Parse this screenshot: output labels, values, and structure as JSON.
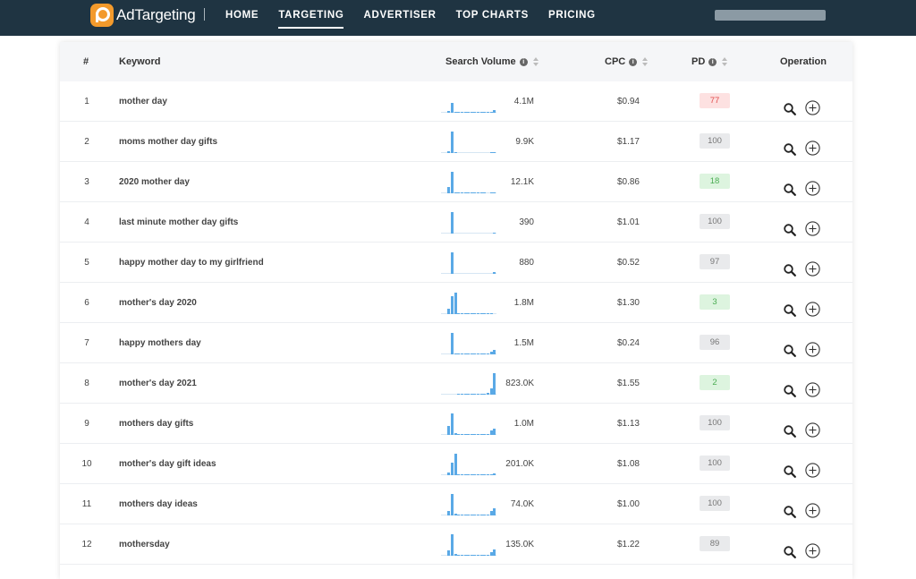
{
  "brand": {
    "name": "AdTargeting"
  },
  "nav": {
    "items": [
      "HOME",
      "TARGETING",
      "ADVERTISER",
      "TOP CHARTS",
      "PRICING"
    ],
    "active": "TARGETING"
  },
  "colors": {
    "nav_bg": "#1f3442",
    "accent": "#f39a2c",
    "spark": "#5aa9e6",
    "pd_red": "#e24b4b",
    "pd_green": "#4cae54"
  },
  "table": {
    "headers": {
      "num": "#",
      "keyword": "Keyword",
      "volume": "Search Volume",
      "cpc": "CPC",
      "pd": "PD",
      "operation": "Operation"
    },
    "rows": [
      {
        "num": "1",
        "keyword": "mother day",
        "volume": "4.1M",
        "cpc": "$0.94",
        "pd": "77",
        "pd_level": "red",
        "trend": [
          0,
          0,
          9,
          44,
          4,
          2,
          1,
          1,
          1,
          1,
          1,
          1,
          1,
          1,
          1,
          6,
          13
        ]
      },
      {
        "num": "2",
        "keyword": "moms mother day gifts",
        "volume": "9.9K",
        "cpc": "$1.17",
        "pd": "100",
        "pd_level": "grey",
        "trend": [
          0,
          0,
          8,
          100,
          2,
          0,
          0,
          0,
          0,
          0,
          0,
          0,
          0,
          0,
          0,
          1,
          3
        ]
      },
      {
        "num": "3",
        "keyword": "2020 mother day",
        "volume": "12.1K",
        "cpc": "$0.86",
        "pd": "18",
        "pd_level": "green",
        "trend": [
          0,
          0,
          30,
          100,
          6,
          2,
          1,
          1,
          1,
          1,
          1,
          1,
          1,
          1,
          0,
          1,
          1
        ]
      },
      {
        "num": "4",
        "keyword": "last minute mother day gifts",
        "volume": "390",
        "cpc": "$1.01",
        "pd": "100",
        "pd_level": "grey",
        "trend": [
          0,
          0,
          0,
          100,
          0,
          0,
          0,
          0,
          0,
          0,
          0,
          0,
          0,
          0,
          0,
          0,
          2
        ]
      },
      {
        "num": "5",
        "keyword": "happy mother day to my girlfriend",
        "volume": "880",
        "cpc": "$0.52",
        "pd": "97",
        "pd_level": "grey",
        "trend": [
          0,
          0,
          0,
          100,
          0,
          0,
          0,
          0,
          0,
          0,
          0,
          0,
          0,
          0,
          0,
          0,
          10
        ]
      },
      {
        "num": "6",
        "keyword": "mother's day 2020",
        "volume": "1.8M",
        "cpc": "$1.30",
        "pd": "3",
        "pd_level": "green",
        "trend": [
          0,
          0,
          25,
          85,
          100,
          5,
          4,
          3,
          3,
          2,
          2,
          2,
          2,
          2,
          2,
          1,
          0
        ]
      },
      {
        "num": "7",
        "keyword": "happy mothers day",
        "volume": "1.5M",
        "cpc": "$0.24",
        "pd": "96",
        "pd_level": "grey",
        "trend": [
          0,
          0,
          0,
          100,
          5,
          2,
          1,
          1,
          1,
          1,
          1,
          1,
          1,
          1,
          1,
          14,
          22
        ]
      },
      {
        "num": "8",
        "keyword": "mother's day 2021",
        "volume": "823.0K",
        "cpc": "$1.55",
        "pd": "2",
        "pd_level": "green",
        "trend": [
          0,
          0,
          0,
          0,
          0,
          1,
          1,
          1,
          1,
          1,
          2,
          3,
          3,
          5,
          10,
          30,
          100
        ]
      },
      {
        "num": "9",
        "keyword": "mothers day gifts",
        "volume": "1.0M",
        "cpc": "$1.13",
        "pd": "100",
        "pd_level": "grey",
        "trend": [
          0,
          0,
          40,
          100,
          8,
          4,
          3,
          2,
          2,
          2,
          2,
          2,
          2,
          2,
          3,
          20,
          28
        ]
      },
      {
        "num": "10",
        "keyword": "mother's day gift ideas",
        "volume": "201.0K",
        "cpc": "$1.08",
        "pd": "100",
        "pd_level": "grey",
        "trend": [
          0,
          0,
          12,
          60,
          100,
          6,
          3,
          2,
          2,
          2,
          2,
          2,
          2,
          2,
          1,
          5,
          10
        ]
      },
      {
        "num": "11",
        "keyword": "mothers day ideas",
        "volume": "74.0K",
        "cpc": "$1.00",
        "pd": "100",
        "pd_level": "grey",
        "trend": [
          0,
          0,
          20,
          100,
          10,
          3,
          2,
          2,
          2,
          2,
          2,
          2,
          2,
          2,
          2,
          20,
          35
        ]
      },
      {
        "num": "12",
        "keyword": "mothersday",
        "volume": "135.0K",
        "cpc": "$1.22",
        "pd": "89",
        "pd_level": "grey",
        "trend": [
          0,
          0,
          25,
          100,
          8,
          3,
          2,
          2,
          2,
          2,
          2,
          2,
          2,
          2,
          2,
          15,
          30
        ]
      }
    ]
  }
}
